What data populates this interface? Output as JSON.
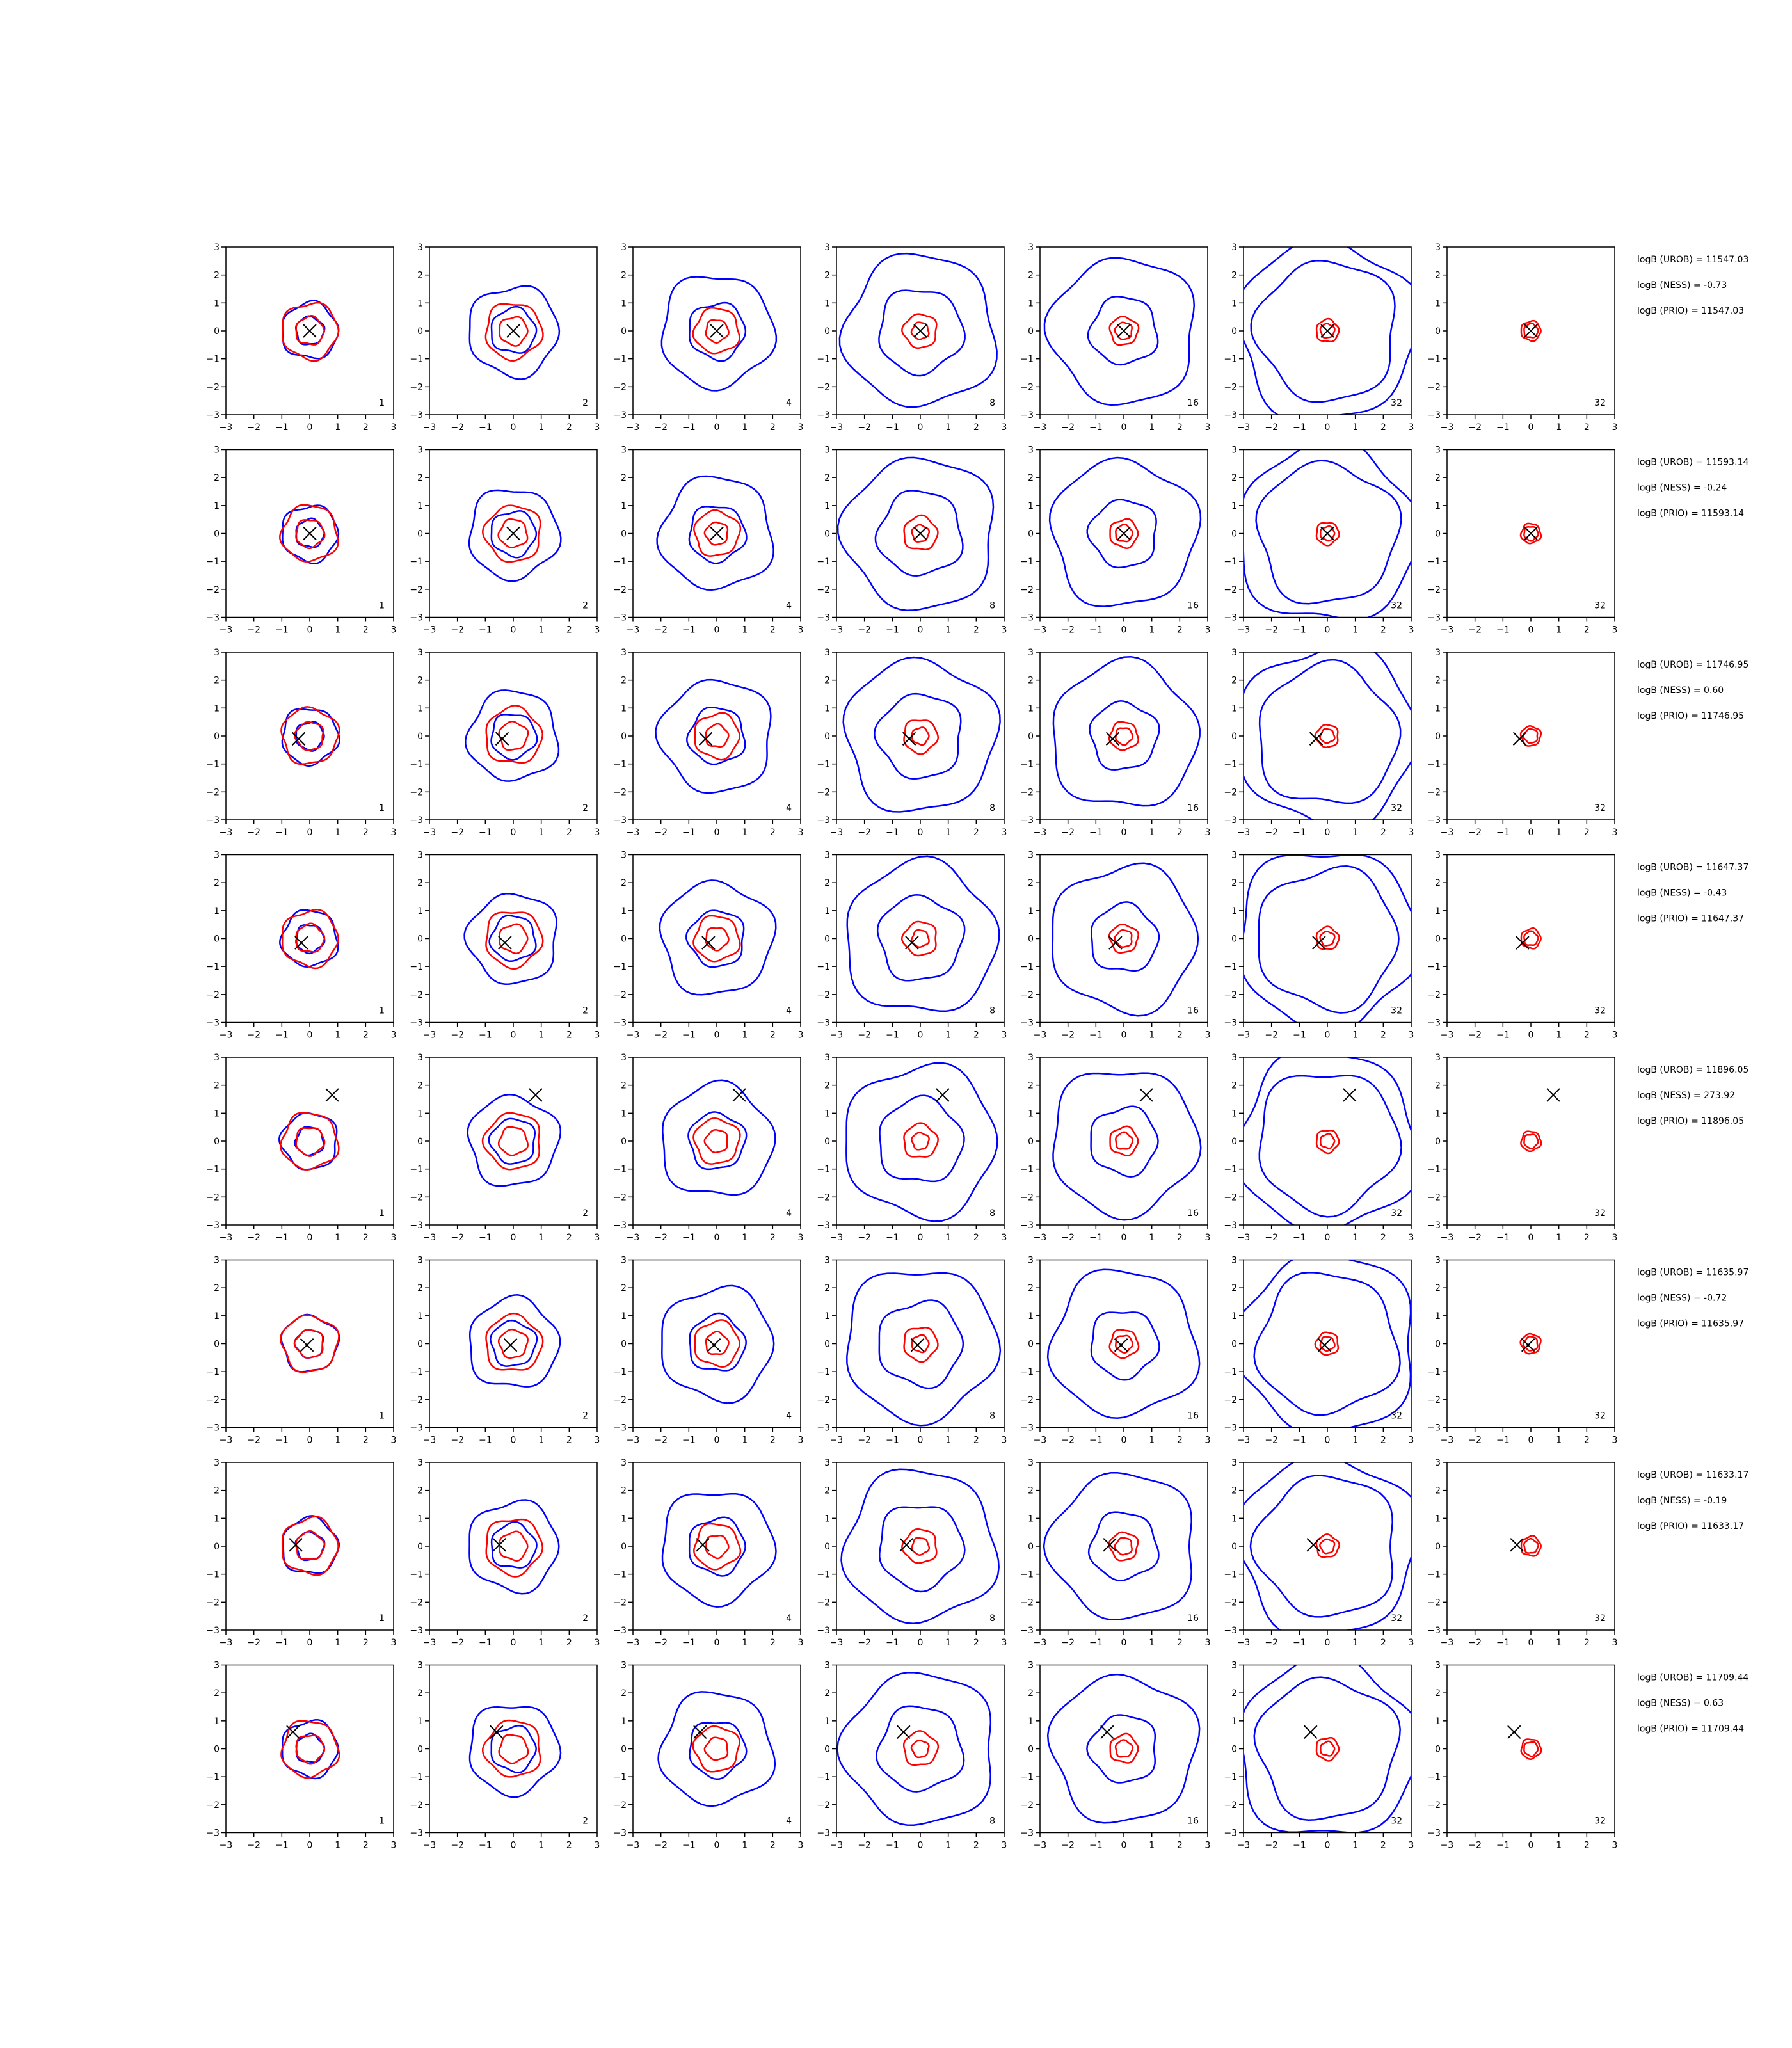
{
  "chart_data": {
    "type": "contour-grid",
    "xlim": [
      -3,
      3
    ],
    "ylim": [
      -3,
      3
    ],
    "xticks": [
      {
        "value": -3,
        "label": "−3"
      },
      {
        "value": -2,
        "label": "−2"
      },
      {
        "value": -1,
        "label": "−1"
      },
      0,
      1,
      2,
      3
    ],
    "yticks": [
      {
        "value": -3,
        "label": "−3"
      },
      {
        "value": -2,
        "label": "−2"
      },
      {
        "value": -1,
        "label": "−1"
      },
      0,
      1,
      2,
      3
    ],
    "colors": {
      "inner": "#ff0000",
      "outer": "#0000ff",
      "marker": "#000000"
    },
    "rows": [
      {
        "panel_labels": [
          1,
          2,
          4,
          8,
          16,
          32,
          32
        ],
        "marker": {
          "x": 0,
          "y": 0
        },
        "text": [
          "logB (UROB) = 11547.03",
          "logB (NESS) = -0.73",
          "logB (PRIO) = 11547.03"
        ]
      },
      {
        "panel_labels": [
          1,
          2,
          4,
          8,
          16,
          32,
          32
        ],
        "marker": {
          "x": 0,
          "y": 0
        },
        "text": [
          "logB (UROB) = 11593.14",
          "logB (NESS) = -0.24",
          "logB (PRIO) = 11593.14"
        ]
      },
      {
        "panel_labels": [
          1,
          2,
          4,
          8,
          16,
          32,
          32
        ],
        "marker": {
          "x": -0.4,
          "y": -0.1
        },
        "text": [
          "logB (UROB) = 11746.95",
          "logB (NESS) = 0.60",
          "logB (PRIO) = 11746.95"
        ]
      },
      {
        "panel_labels": [
          1,
          2,
          4,
          8,
          16,
          32,
          32
        ],
        "marker": {
          "x": -0.3,
          "y": -0.15
        },
        "text": [
          "logB (UROB) = 11647.37",
          "logB (NESS) = -0.43",
          "logB (PRIO) = 11647.37"
        ]
      },
      {
        "panel_labels": [
          1,
          2,
          4,
          8,
          16,
          32,
          32
        ],
        "marker": {
          "x": 0.8,
          "y": 1.65
        },
        "text": [
          "logB (UROB) = 11896.05",
          "logB (NESS) = 273.92",
          "logB (PRIO) = 11896.05"
        ]
      },
      {
        "panel_labels": [
          1,
          2,
          4,
          8,
          16,
          32,
          32
        ],
        "marker": {
          "x": -0.1,
          "y": -0.05
        },
        "text": [
          "logB (UROB) = 11635.97",
          "logB (NESS) = -0.72",
          "logB (PRIO) = 11635.97"
        ]
      },
      {
        "panel_labels": [
          1,
          2,
          4,
          8,
          16,
          32,
          32
        ],
        "marker": {
          "x": -0.5,
          "y": 0.05
        },
        "text": [
          "logB (UROB) = 11633.17",
          "logB (NESS) = -0.19",
          "logB (PRIO) = 11633.17"
        ]
      },
      {
        "panel_labels": [
          1,
          2,
          4,
          8,
          16,
          32,
          32
        ],
        "marker": {
          "x": -0.6,
          "y": 0.6
        },
        "text": [
          "logB (UROB) = 11709.44",
          "logB (NESS) = 0.63",
          "logB (PRIO) = 11709.44"
        ]
      }
    ]
  }
}
